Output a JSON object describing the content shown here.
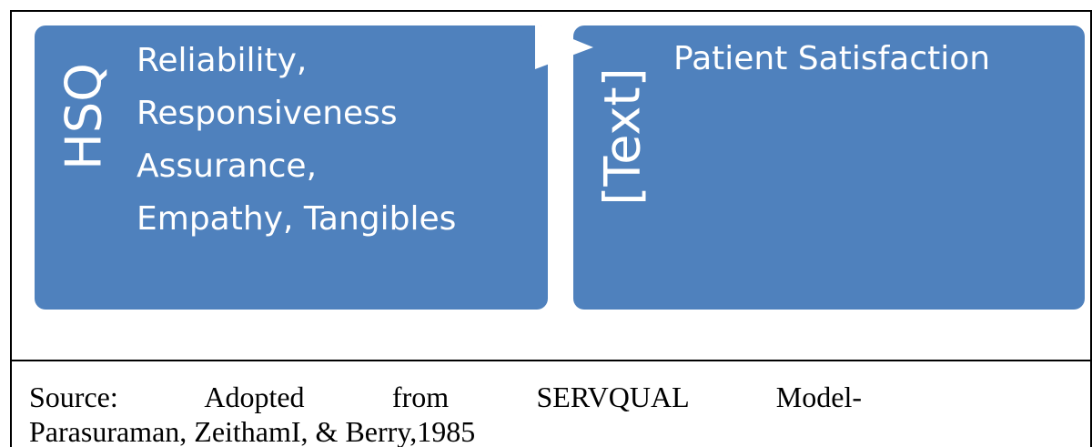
{
  "nodes": [
    {
      "label": "HSQ",
      "items": [
        "Reliability,",
        "Responsiveness",
        "Assurance,",
        "Empathy, Tangibles"
      ]
    },
    {
      "label": "[Text]",
      "items": [
        "Patient Satisfaction"
      ]
    }
  ],
  "source": [
    "Source: Adopted from SERVQUAL Model-",
    "Parasuraman, ZeithamI, & Berry,1985"
  ]
}
